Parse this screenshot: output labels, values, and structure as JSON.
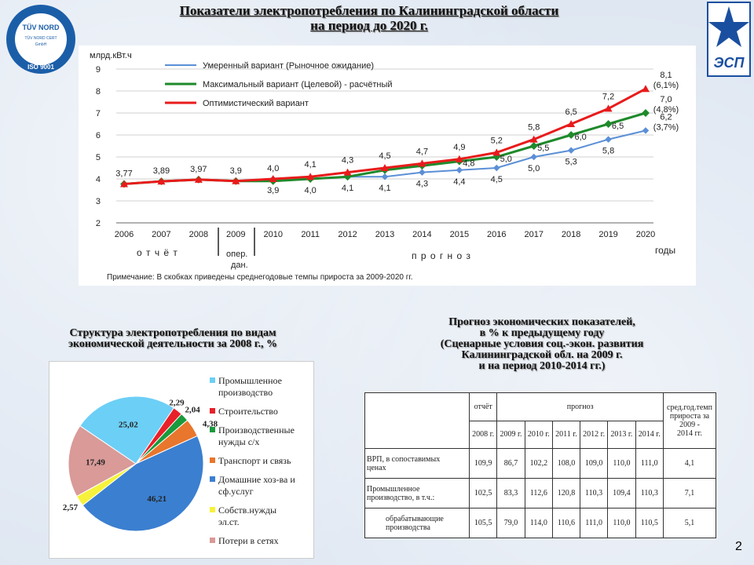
{
  "title": {
    "line1": "Показатели электропотребления по Калининградской области",
    "line2": "на период до 2020 г."
  },
  "logo_left": {
    "l1": "TÜV NORD",
    "l2": "TÜV NORD CERT",
    "l3": "GmbH",
    "l4": "ISO 9001"
  },
  "logo_right": {
    "text": "ЭСП"
  },
  "colors": {
    "moderate": "#5b8fd6",
    "maximal": "#1e8a2b",
    "optimistic": "#e81b1b"
  },
  "chart_data": [
    {
      "type": "line",
      "title": "",
      "ylabel": "млрд.кВт.ч",
      "xlabel": "годы",
      "ylim": [
        2,
        9
      ],
      "yticks": [
        "2",
        "3",
        "4",
        "5",
        "6",
        "7",
        "8",
        "9"
      ],
      "x": [
        "2006",
        "2007",
        "2008",
        "2009",
        "2010",
        "2011",
        "2012",
        "2013",
        "2014",
        "2015",
        "2016",
        "2017",
        "2018",
        "2019",
        "2020"
      ],
      "series": [
        {
          "name": "Умеренный вариант (Рыночное ожидание)",
          "values": [
            3.77,
            3.89,
            3.97,
            3.9,
            4.0,
            4.0,
            4.1,
            4.1,
            4.3,
            4.4,
            4.5,
            5.0,
            5.3,
            5.8,
            6.2
          ]
        },
        {
          "name": "Максимальный вариант (Целевой) - расчётный",
          "values": [
            3.77,
            3.89,
            3.97,
            3.9,
            3.9,
            4.0,
            4.1,
            4.4,
            4.6,
            4.8,
            5.0,
            5.5,
            6.0,
            6.5,
            7.0
          ]
        },
        {
          "name": "Оптимистический вариант",
          "values": [
            3.77,
            3.89,
            3.97,
            3.9,
            4.0,
            4.1,
            4.3,
            4.5,
            4.7,
            4.9,
            5.2,
            5.8,
            6.5,
            7.2,
            8.1
          ]
        }
      ],
      "labels_common": [
        "3,77",
        "3,89",
        "3,97",
        "3,9",
        "4,0"
      ],
      "labels_top": [
        "4,1",
        "4,3",
        "4,5",
        "4,7",
        "4,9",
        "5,2",
        "5,8",
        "6,5",
        "7,2",
        "8,1"
      ],
      "labels_mid": [
        "4,8",
        "5,0",
        "5,5",
        "6,0",
        "6,5",
        "7,0"
      ],
      "labels_low": [
        "3,9",
        "4,0",
        "4,1",
        "4,1",
        "4,3",
        "4,4",
        "4,5",
        "5,0",
        "5,3",
        "5,8",
        "6,2"
      ],
      "end_notes": [
        "(6,1%)",
        "(4,8%)",
        "(3,7%)"
      ],
      "period_labels": {
        "report": "о т ч ё т",
        "op": "опер.",
        "op2": "дан.",
        "forecast": "п р о г н о з"
      },
      "note": "Примечание: В скобках приведены среднегодовые темпы прироста за 2009-2020 гг."
    },
    {
      "type": "pie",
      "title": "Структура электропотребления по видам экономической деятельности за 2008 г., %",
      "slices": [
        {
          "name": "Промышленное производство",
          "value": 25.02,
          "label": "25,02",
          "color": "#6ccff6"
        },
        {
          "name": "Строительство",
          "value": 2.29,
          "label": "2,29",
          "color": "#e8202a"
        },
        {
          "name": "Производственные нужды с/х",
          "value": 2.04,
          "label": "2,04",
          "color": "#1a9a3c"
        },
        {
          "name": "Транспорт и связь",
          "value": 4.38,
          "label": "4,38",
          "color": "#e8762c"
        },
        {
          "name": "Домашние хоз-ва и сф.услуг",
          "value": 46.21,
          "label": "46,21",
          "color": "#3b7fd0"
        },
        {
          "name": "Собств.нужды эл.ст.",
          "value": 2.57,
          "label": "2,57",
          "color": "#f6f23c"
        },
        {
          "name": "Потери в сетях",
          "value": 17.49,
          "label": "17,49",
          "color": "#d99a98"
        }
      ]
    }
  ],
  "pie_title": {
    "l1": "Структура электропотребления по видам",
    "l2": "экономической деятельности за 2008 г., %"
  },
  "legend_lines": [
    [
      "Промышленное",
      "производство"
    ],
    [
      "Строительство"
    ],
    [
      "Производственные",
      "нужды с/х"
    ],
    [
      "Транспорт и связь"
    ],
    [
      "Домашние хоз-ва и",
      "сф.услуг"
    ],
    [
      "Собств.нужды",
      "эл.ст."
    ],
    [
      "Потери в сетях"
    ]
  ],
  "table_title": {
    "l1": "Прогноз экономических показателей,",
    "l2": "в % к предыдущему году",
    "l3": "(Сценарные условия соц.-экон. развития",
    "l4": "Калининградской обл. на 2009 г.",
    "l5": "и на период 2010-2014 гг.)"
  },
  "table": {
    "report": "отчёт",
    "forecast": "прогноз",
    "avg": [
      "сред.год.темп",
      "прироста за",
      "2009 -",
      "2014 гг."
    ],
    "years": [
      "2008 г.",
      "2009 г.",
      "2010 г.",
      "2011 г.",
      "2012 г.",
      "2013 г.",
      "2014 г."
    ],
    "rows": [
      {
        "label": [
          "ВРП, в сопоставимых",
          "ценах"
        ],
        "values": [
          "109,9",
          "86,7",
          "102,2",
          "108,0",
          "109,0",
          "110,0",
          "111,0",
          "4,1"
        ]
      },
      {
        "label": [
          "Промышленное",
          "производство, в т.ч.:"
        ],
        "values": [
          "102,5",
          "83,3",
          "112,6",
          "120,8",
          "110,3",
          "109,4",
          "110,3",
          "7,1"
        ]
      },
      {
        "label": [
          "обрабатывающие",
          "производства"
        ],
        "values": [
          "105,5",
          "79,0",
          "114,0",
          "110,6",
          "111,0",
          "110,0",
          "110,5",
          "5,1"
        ]
      }
    ]
  },
  "page_number": "2"
}
